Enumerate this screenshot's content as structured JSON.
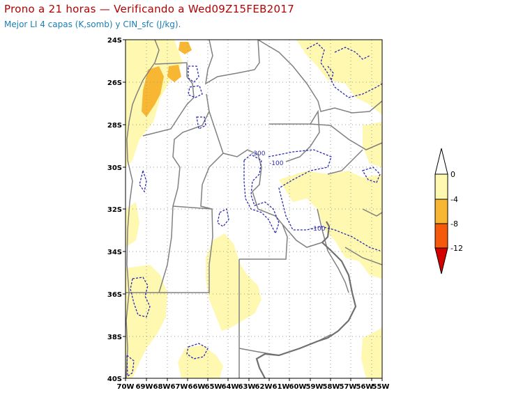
{
  "header": {
    "title": "Prono a 21 horas — Verificando a Wed09Z15FEB2017",
    "subtitle": "Mejor LI 4 capas (K,somb) y CIN_sfc (J/kg)."
  },
  "map": {
    "x_ticks": [
      "70W",
      "69W",
      "68W",
      "67W",
      "66W",
      "65W",
      "64W",
      "63W",
      "62W",
      "61W",
      "60W",
      "59W",
      "58W",
      "57W",
      "56W",
      "55W"
    ],
    "y_ticks": [
      "24S",
      "26S",
      "28S",
      "30S",
      "32S",
      "34S",
      "36S",
      "38S",
      "40S"
    ],
    "contour_labels": [
      "-300",
      "-100",
      "-100"
    ],
    "colors": {
      "li_0_to_-4": "#fff8b0",
      "li_-4_to_-8": "#f7b733",
      "li_-8_to_-12": "#f55a0a",
      "li_below_-12": "#d40000",
      "cin_contour": "#2a2ab0",
      "borders": "#808080"
    }
  },
  "colorbar": {
    "labels": [
      "0",
      "-4",
      "-8",
      "-12"
    ]
  }
}
